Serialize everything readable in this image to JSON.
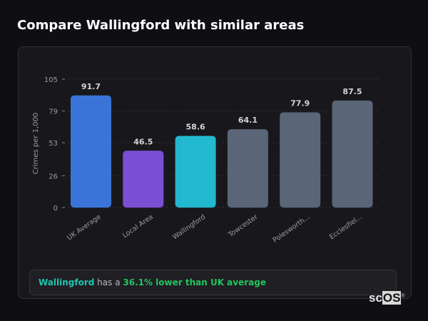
{
  "title": "Compare Wallingford with similar areas",
  "chart_data": {
    "type": "bar",
    "title": "",
    "xlabel": "",
    "ylabel": "Crimes per 1,000",
    "ylim": [
      0,
      105
    ],
    "yticks": [
      0,
      26,
      53,
      79,
      105
    ],
    "grid": true,
    "categories": [
      "UK Average",
      "Local Area",
      "Wallingford",
      "Towcester",
      "Polesworth...",
      "Ecclesfiel..."
    ],
    "values": [
      91.7,
      46.5,
      58.6,
      64.1,
      77.9,
      87.5
    ],
    "data_labels": [
      "91.7",
      "46.5",
      "58.6",
      "64.1",
      "77.9",
      "87.5"
    ],
    "colors": [
      "#3b74d9",
      "#7b4fd4",
      "#22b8cf",
      "#5b6578",
      "#5b6578",
      "#5b6578"
    ]
  },
  "summary": {
    "area": "Wallingford",
    "middle": " has a ",
    "comparison": "36.1% lower than UK average"
  },
  "watermark": {
    "sc": "sc",
    "os": "OS",
    "mark": "®"
  }
}
